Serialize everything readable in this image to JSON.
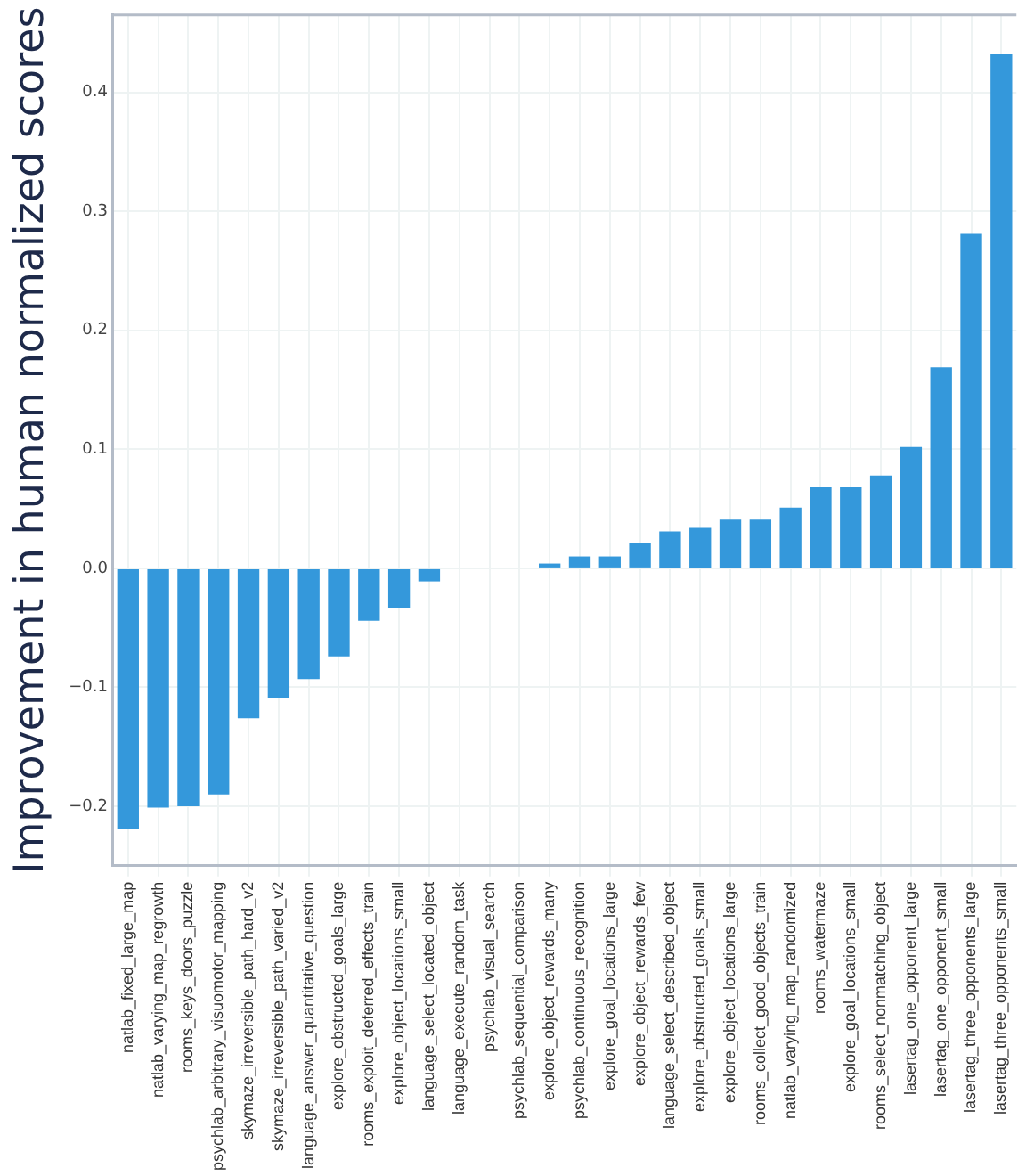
{
  "chart_data": {
    "type": "bar",
    "ylabel": "Improvement in human normalized scores",
    "categories": [
      "natlab_fixed_large_map",
      "natlab_varying_map_regrowth",
      "rooms_keys_doors_puzzle",
      "psychlab_arbitrary_visuomotor_mapping",
      "skymaze_irreversible_path_hard_v2",
      "skymaze_irreversible_path_varied_v2",
      "language_answer_quantitative_question",
      "explore_obstructed_goals_large",
      "rooms_exploit_deferred_effects_train",
      "explore_object_locations_small",
      "language_select_located_object",
      "language_execute_random_task",
      "psychlab_visual_search",
      "psychlab_sequential_comparison",
      "explore_object_rewards_many",
      "psychlab_continuous_recognition",
      "explore_goal_locations_large",
      "explore_object_rewards_few",
      "language_select_described_object",
      "explore_obstructed_goals_small",
      "explore_object_locations_large",
      "rooms_collect_good_objects_train",
      "natlab_varying_map_randomized",
      "rooms_watermaze",
      "explore_goal_locations_small",
      "rooms_select_nonmatching_object",
      "lasertag_one_opponent_large",
      "lasertag_one_opponent_small",
      "lasertag_three_opponents_large",
      "lasertag_three_opponents_small"
    ],
    "values": [
      -0.219,
      -0.201,
      -0.2,
      -0.19,
      -0.126,
      -0.109,
      -0.093,
      -0.074,
      -0.044,
      -0.033,
      -0.011,
      0,
      0,
      0,
      0.004,
      0.01,
      0.01,
      0.021,
      0.031,
      0.034,
      0.041,
      0.041,
      0.051,
      0.068,
      0.068,
      0.078,
      0.102,
      0.169,
      0.281,
      0.432
    ],
    "color": "#3498db",
    "ylim": [
      -0.25,
      0.465
    ],
    "yticks": [
      {
        "value": -0.2,
        "label": "−0.2"
      },
      {
        "value": -0.1,
        "label": "−0.1"
      },
      {
        "value": 0,
        "label": "0.0"
      },
      {
        "value": 0.1,
        "label": "0.1"
      },
      {
        "value": 0.2,
        "label": "0.2"
      },
      {
        "value": 0.3,
        "label": "0.3"
      },
      {
        "value": 0.4,
        "label": "0.4"
      }
    ],
    "grid": true,
    "legend": false
  }
}
